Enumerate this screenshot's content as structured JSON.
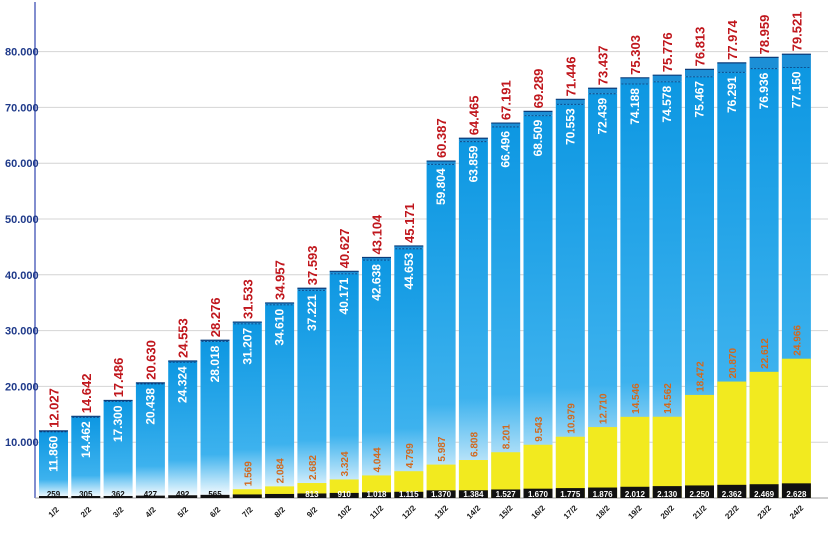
{
  "chart_data": {
    "type": "bar",
    "title": "",
    "xlabel": "",
    "ylabel": "",
    "ylim": [
      0,
      86000
    ],
    "yticks": [
      "10.000",
      "20.000",
      "30.000",
      "40.000",
      "50.000",
      "60.000",
      "70.000",
      "80.000"
    ],
    "ytick_values": [
      10000,
      20000,
      30000,
      40000,
      50000,
      60000,
      70000,
      80000
    ],
    "grid": true,
    "categories": [
      "1/2",
      "2/2",
      "3/2",
      "4/2",
      "5/2",
      "6/2",
      "7/2",
      "8/2",
      "9/2",
      "10/2",
      "11/2",
      "12/2",
      "13/2",
      "14/2",
      "15/2",
      "16/2",
      "17/2",
      "18/2",
      "19/2",
      "20/2",
      "21/2",
      "22/2",
      "23/2",
      "24/2"
    ],
    "series": [
      {
        "name": "total",
        "color": "#c0161c",
        "values": [
          12027,
          14642,
          17486,
          20630,
          24553,
          28276,
          31533,
          34957,
          37593,
          40627,
          43104,
          45171,
          60387,
          64465,
          67191,
          69289,
          71446,
          73437,
          75303,
          75776,
          76813,
          77974,
          78959,
          79521
        ],
        "labels": [
          "12.027",
          "14.642",
          "17.486",
          "20.630",
          "24.553",
          "28.276",
          "31.533",
          "34.957",
          "37.593",
          "40.627",
          "43.104",
          "45.171",
          "60.387",
          "64.465",
          "67.191",
          "69.289",
          "71.446",
          "73.437",
          "75.303",
          "75.776",
          "76.813",
          "77.974",
          "78.959",
          "79.521"
        ]
      },
      {
        "name": "confirmed",
        "color": "#1aa0e6",
        "values": [
          11860,
          14462,
          17300,
          20438,
          24324,
          28018,
          31207,
          34610,
          37221,
          40171,
          42638,
          44653,
          59804,
          63859,
          66496,
          68509,
          70553,
          72439,
          74188,
          74578,
          75467,
          76291,
          76936,
          77150
        ],
        "labels": [
          "11.860",
          "14.462",
          "17.300",
          "20.438",
          "24.324",
          "28.018",
          "31.207",
          "34.610",
          "37.221",
          "40.171",
          "42.638",
          "44.653",
          "59.804",
          "63.859",
          "66.496",
          "68.509",
          "70.553",
          "72.439",
          "74.188",
          "74.578",
          "75.467",
          "76.291",
          "76.936",
          "77.150"
        ]
      },
      {
        "name": "recovered",
        "color": "#f2ea1f",
        "values": [
          null,
          null,
          null,
          null,
          null,
          null,
          1569,
          2084,
          2682,
          3324,
          4044,
          4799,
          5987,
          6808,
          8201,
          9543,
          10979,
          12710,
          14546,
          14562,
          18472,
          20870,
          22612,
          24966
        ],
        "labels": [
          "",
          "",
          "",
          "",
          "",
          "",
          "1.569",
          "2.084",
          "2.682",
          "3.324",
          "4.044",
          "4.799",
          "5.987",
          "6.808",
          "8.201",
          "9.543",
          "10.979",
          "12.710",
          "14.546",
          "14.562",
          "18.472",
          "20.870",
          "22.612",
          "24.966"
        ]
      },
      {
        "name": "deaths",
        "color": "#111111",
        "values": [
          259,
          305,
          362,
          427,
          492,
          565,
          638,
          724,
          813,
          910,
          1018,
          1115,
          1370,
          1384,
          1527,
          1670,
          1775,
          1876,
          2012,
          2130,
          2250,
          2362,
          2469,
          2628
        ],
        "labels": [
          "259",
          "305",
          "362",
          "427",
          "492",
          "565",
          "",
          "",
          "813",
          "910",
          "1.018",
          "1.115",
          "1.370",
          "1.384",
          "1.527",
          "1.670",
          "1.775",
          "1.876",
          "2.012",
          "2.130",
          "2.250",
          "2.362",
          "2.469",
          "2.628"
        ]
      }
    ]
  }
}
